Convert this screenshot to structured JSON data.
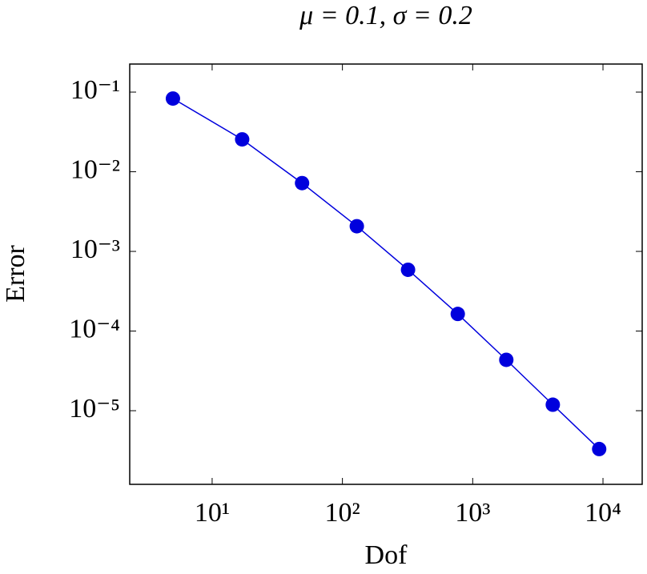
{
  "chart_data": {
    "type": "line",
    "title": "μ = 0.1, σ = 0.2",
    "xlabel": "Dof",
    "ylabel": "Error",
    "xscale": "log",
    "yscale": "log",
    "x": [
      5,
      17,
      49,
      129,
      319,
      768,
      1811,
      4120,
      9350
    ],
    "series": [
      {
        "name": "Error",
        "color": "#0000dd",
        "values": [
          0.083,
          0.0255,
          0.0072,
          0.00207,
          0.000588,
          0.000164,
          4.35e-05,
          1.19e-05,
          3.3e-06
        ]
      }
    ],
    "xlim": [
      2.33,
      20000
    ],
    "ylim": [
      1.19e-06,
      0.225
    ],
    "xticks": [
      {
        "value": 10,
        "label": "10¹"
      },
      {
        "value": 100,
        "label": "10²"
      },
      {
        "value": 1000,
        "label": "10³"
      },
      {
        "value": 10000,
        "label": "10⁴"
      }
    ],
    "yticks": [
      {
        "value": 0.1,
        "label": "10⁻¹"
      },
      {
        "value": 0.01,
        "label": "10⁻²"
      },
      {
        "value": 0.001,
        "label": "10⁻³"
      },
      {
        "value": 0.0001,
        "label": "10⁻⁴"
      },
      {
        "value": 1e-05,
        "label": "10⁻⁵"
      }
    ]
  }
}
